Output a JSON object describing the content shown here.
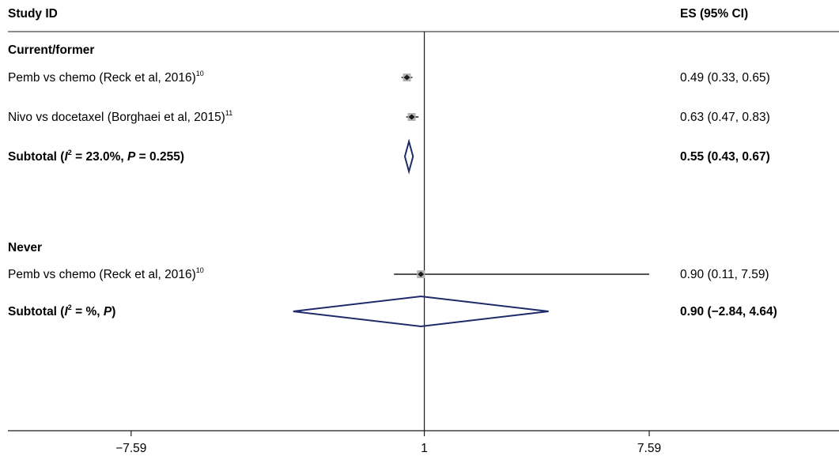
{
  "chart_data": {
    "type": "forest",
    "header": {
      "study": "Study ID",
      "effect": "ES (95% CI)"
    },
    "axis": {
      "ticks": [
        {
          "value": -7.59,
          "label": "−7.59"
        },
        {
          "value": 1,
          "label": "1"
        },
        {
          "value": 7.59,
          "label": "7.59"
        }
      ],
      "null_line": 1,
      "xlim": [
        -11.2,
        13.15
      ]
    },
    "groups": [
      {
        "name": "Current/former",
        "studies": [
          {
            "label": "Pemb vs chemo (Reck et al, 2016)",
            "ref": "10",
            "es": 0.49,
            "lo": 0.33,
            "hi": 0.65,
            "es_text": "0.49 (0.33, 0.65)"
          },
          {
            "label": "Nivo vs docetaxel (Borghaei et al, 2015)",
            "ref": "11",
            "es": 0.63,
            "lo": 0.47,
            "hi": 0.83,
            "es_text": "0.63 (0.47, 0.83)"
          }
        ],
        "subtotal": {
          "prefix": "Subtotal (",
          "stat_i": "I",
          "stat_sup": "2",
          "stat_rest": " = 23.0%, ",
          "p_label": "P",
          "p_rest": " = 0.255)",
          "es": 0.55,
          "lo": 0.43,
          "hi": 0.67,
          "es_text": "0.55 (0.43, 0.67)"
        }
      },
      {
        "name": "Never",
        "studies": [
          {
            "label": "Pemb vs chemo (Reck et al, 2016)",
            "ref": "10",
            "es": 0.9,
            "lo": 0.11,
            "hi": 7.59,
            "es_text": "0.90 (0.11, 7.59)"
          }
        ],
        "subtotal": {
          "prefix": "Subtotal (",
          "stat_i": "I",
          "stat_sup": "2",
          "stat_rest": " = %, ",
          "p_label": "P",
          "p_rest": ")",
          "es": 0.9,
          "lo": -2.84,
          "hi": 4.64,
          "es_text": "0.90 (−2.84, 4.64)"
        }
      }
    ],
    "colors": {
      "diamond": "#1f2a6b",
      "marker_box": "#b3b3b3",
      "text": "#1a1a1a"
    }
  }
}
